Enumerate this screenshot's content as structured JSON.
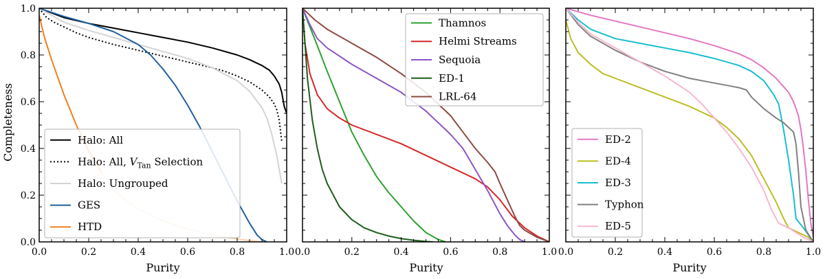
{
  "chart_data": [
    {
      "type": "line",
      "xlabel": "Purity",
      "ylabel": "Completeness",
      "xlim": [
        0,
        1
      ],
      "ylim": [
        0,
        1
      ],
      "xticks": [
        "0.0",
        "0.2",
        "0.4",
        "0.6",
        "0.8",
        "1.0"
      ],
      "yticks": [
        "0.0",
        "0.2",
        "0.4",
        "0.6",
        "0.8",
        "1.0"
      ],
      "legend_position": "lower-left",
      "series": [
        {
          "name": "Halo: All",
          "label_prefix": "Halo: All",
          "color": "#000000",
          "style": "solid",
          "x": [
            0,
            0.1,
            0.2,
            0.3,
            0.4,
            0.5,
            0.6,
            0.7,
            0.8,
            0.85,
            0.9,
            0.93,
            0.95,
            0.97,
            0.98,
            0.99,
            1.0
          ],
          "y": [
            1.0,
            0.96,
            0.935,
            0.915,
            0.895,
            0.875,
            0.855,
            0.83,
            0.8,
            0.78,
            0.755,
            0.735,
            0.71,
            0.675,
            0.64,
            0.58,
            0.55
          ]
        },
        {
          "name": "Halo: All, V_Tan Selection",
          "label_prefix": "Halo: All, ",
          "label_italic": "V",
          "label_sub": "Tan",
          "label_suffix": " Selection",
          "color": "#000000",
          "style": "dotted",
          "x": [
            0,
            0.03,
            0.06,
            0.1,
            0.15,
            0.2,
            0.3,
            0.4,
            0.5,
            0.6,
            0.7,
            0.75,
            0.8,
            0.85,
            0.9,
            0.93,
            0.95,
            0.96,
            0.97,
            0.98
          ],
          "y": [
            1.0,
            0.96,
            0.94,
            0.92,
            0.895,
            0.875,
            0.845,
            0.82,
            0.795,
            0.77,
            0.745,
            0.73,
            0.71,
            0.685,
            0.65,
            0.62,
            0.59,
            0.565,
            0.52,
            0.43
          ]
        },
        {
          "name": "Halo: Ungrouped",
          "label_prefix": "Halo: Ungrouped",
          "color": "#d4d4d4",
          "style": "solid",
          "x": [
            0,
            0.1,
            0.2,
            0.3,
            0.4,
            0.5,
            0.6,
            0.7,
            0.8,
            0.85,
            0.9,
            0.92,
            0.94,
            0.96,
            0.98
          ],
          "y": [
            1.0,
            0.94,
            0.905,
            0.875,
            0.845,
            0.815,
            0.785,
            0.745,
            0.69,
            0.645,
            0.575,
            0.53,
            0.46,
            0.37,
            0.25
          ]
        },
        {
          "name": "GES",
          "label_prefix": "GES",
          "color": "#1f5f9e",
          "style": "solid",
          "x": [
            0,
            0.1,
            0.2,
            0.3,
            0.4,
            0.45,
            0.5,
            0.55,
            0.6,
            0.65,
            0.7,
            0.75,
            0.8,
            0.85,
            0.88,
            0.9,
            0.92
          ],
          "y": [
            1.0,
            0.965,
            0.935,
            0.9,
            0.845,
            0.8,
            0.74,
            0.67,
            0.585,
            0.49,
            0.385,
            0.28,
            0.175,
            0.08,
            0.03,
            0.01,
            0.0
          ]
        },
        {
          "name": "HTD",
          "label_prefix": "HTD",
          "color": "#f07f1a",
          "style": "solid",
          "fade_after": 0.28,
          "x": [
            0,
            0.02,
            0.05,
            0.1,
            0.15,
            0.2,
            0.25,
            0.3,
            0.4,
            0.5,
            0.6,
            0.7,
            0.8,
            0.88,
            0.9
          ],
          "y": [
            0.97,
            0.88,
            0.78,
            0.63,
            0.5,
            0.39,
            0.3,
            0.22,
            0.14,
            0.09,
            0.055,
            0.03,
            0.012,
            0.002,
            0.0
          ]
        }
      ]
    },
    {
      "type": "line",
      "xlabel": "Purity",
      "ylabel": "",
      "xlim": [
        0,
        1
      ],
      "ylim": [
        0,
        1
      ],
      "xticks": [
        "0.0",
        "0.2",
        "0.4",
        "0.6",
        "0.8",
        "1.0"
      ],
      "yticks": [],
      "legend_position": "top-right",
      "series": [
        {
          "name": "Thamnos",
          "label_prefix": "Thamnos",
          "color": "#2ca02c",
          "style": "solid",
          "x": [
            0,
            0.03,
            0.06,
            0.1,
            0.15,
            0.2,
            0.25,
            0.3,
            0.35,
            0.4,
            0.45,
            0.5,
            0.55,
            0.58
          ],
          "y": [
            1.0,
            0.92,
            0.84,
            0.73,
            0.6,
            0.47,
            0.37,
            0.28,
            0.21,
            0.15,
            0.09,
            0.04,
            0.01,
            0.0
          ]
        },
        {
          "name": "Helmi Streams",
          "label_prefix": "Helmi Streams",
          "color": "#d62728",
          "style": "solid",
          "x": [
            0,
            0.01,
            0.03,
            0.06,
            0.1,
            0.15,
            0.2,
            0.3,
            0.4,
            0.5,
            0.6,
            0.7,
            0.75,
            0.8,
            0.85,
            0.9,
            0.95,
            1.0
          ],
          "y": [
            1.0,
            0.85,
            0.72,
            0.63,
            0.57,
            0.53,
            0.5,
            0.46,
            0.42,
            0.37,
            0.32,
            0.27,
            0.235,
            0.18,
            0.11,
            0.06,
            0.025,
            0.0
          ]
        },
        {
          "name": "Sequoia",
          "label_prefix": "Sequoia",
          "color": "#8a55c5",
          "style": "solid",
          "x": [
            0,
            0.03,
            0.06,
            0.1,
            0.2,
            0.3,
            0.4,
            0.5,
            0.6,
            0.65,
            0.7,
            0.75,
            0.8,
            0.83,
            0.86,
            0.88,
            0.9
          ],
          "y": [
            1.0,
            0.93,
            0.87,
            0.83,
            0.76,
            0.7,
            0.64,
            0.56,
            0.46,
            0.4,
            0.31,
            0.22,
            0.12,
            0.07,
            0.03,
            0.01,
            0.0
          ]
        },
        {
          "name": "ED-1",
          "label_prefix": "ED-1",
          "color": "#1b5e1b",
          "style": "solid",
          "x": [
            0,
            0.01,
            0.02,
            0.04,
            0.06,
            0.08,
            0.1,
            0.15,
            0.2,
            0.25,
            0.3,
            0.35,
            0.4,
            0.45,
            0.5,
            0.53
          ],
          "y": [
            1.0,
            0.85,
            0.7,
            0.52,
            0.4,
            0.31,
            0.25,
            0.15,
            0.095,
            0.06,
            0.04,
            0.025,
            0.014,
            0.007,
            0.002,
            0.0
          ]
        },
        {
          "name": "LRL-64",
          "label_prefix": "LRL-64",
          "color": "#8c4a40",
          "style": "solid",
          "x": [
            0,
            0.05,
            0.1,
            0.2,
            0.3,
            0.4,
            0.5,
            0.6,
            0.65,
            0.7,
            0.75,
            0.78,
            0.8,
            0.83,
            0.86,
            0.88,
            0.9,
            0.95,
            1.0
          ],
          "y": [
            1.0,
            0.95,
            0.91,
            0.85,
            0.79,
            0.72,
            0.64,
            0.54,
            0.47,
            0.4,
            0.34,
            0.3,
            0.25,
            0.18,
            0.11,
            0.07,
            0.05,
            0.02,
            0.0
          ]
        }
      ]
    },
    {
      "type": "line",
      "xlabel": "Purity",
      "ylabel": "",
      "xlim": [
        0,
        1
      ],
      "ylim": [
        0,
        1
      ],
      "xticks": [
        "0.0",
        "0.2",
        "0.4",
        "0.6",
        "0.8",
        "1.0"
      ],
      "yticks": [],
      "legend_position": "lower-left",
      "series": [
        {
          "name": "ED-2",
          "label_prefix": "ED-2",
          "color": "#e377c2",
          "style": "solid",
          "x": [
            0,
            0.1,
            0.2,
            0.3,
            0.4,
            0.5,
            0.6,
            0.7,
            0.75,
            0.8,
            0.85,
            0.9,
            0.92,
            0.94,
            0.95,
            0.96,
            0.97,
            0.98,
            0.99,
            1.0
          ],
          "y": [
            1.0,
            0.97,
            0.945,
            0.92,
            0.895,
            0.87,
            0.84,
            0.805,
            0.78,
            0.745,
            0.7,
            0.64,
            0.6,
            0.54,
            0.48,
            0.4,
            0.3,
            0.18,
            0.08,
            0.02
          ]
        },
        {
          "name": "ED-4",
          "label_prefix": "ED-4",
          "color": "#bcbd22",
          "style": "solid",
          "x": [
            0,
            0.02,
            0.05,
            0.1,
            0.15,
            0.2,
            0.3,
            0.4,
            0.5,
            0.6,
            0.65,
            0.7,
            0.75,
            0.8,
            0.85,
            0.88,
            0.9,
            0.92,
            0.95,
            0.98,
            1.0
          ],
          "y": [
            0.95,
            0.87,
            0.81,
            0.76,
            0.72,
            0.7,
            0.66,
            0.62,
            0.58,
            0.53,
            0.49,
            0.44,
            0.37,
            0.27,
            0.17,
            0.1,
            0.06,
            0.05,
            0.035,
            0.02,
            0.0
          ]
        },
        {
          "name": "ED-3",
          "label_prefix": "ED-3",
          "color": "#17becf",
          "style": "solid",
          "x": [
            0,
            0.05,
            0.1,
            0.2,
            0.3,
            0.4,
            0.5,
            0.6,
            0.7,
            0.75,
            0.8,
            0.82,
            0.84,
            0.86,
            0.88,
            0.9,
            0.92,
            0.93,
            0.96,
            1.0
          ],
          "y": [
            1.0,
            0.95,
            0.91,
            0.87,
            0.85,
            0.83,
            0.81,
            0.785,
            0.755,
            0.73,
            0.69,
            0.66,
            0.63,
            0.59,
            0.48,
            0.35,
            0.2,
            0.1,
            0.06,
            0.0
          ]
        },
        {
          "name": "Typhon",
          "label_prefix": "Typhon",
          "color": "#808080",
          "style": "solid",
          "x": [
            0,
            0.05,
            0.1,
            0.2,
            0.3,
            0.4,
            0.5,
            0.6,
            0.65,
            0.7,
            0.73,
            0.75,
            0.8,
            0.85,
            0.88,
            0.9,
            0.92,
            0.93,
            0.94,
            0.95,
            0.97,
            1.0
          ],
          "y": [
            1.0,
            0.93,
            0.88,
            0.82,
            0.77,
            0.73,
            0.7,
            0.68,
            0.67,
            0.66,
            0.65,
            0.62,
            0.57,
            0.53,
            0.51,
            0.49,
            0.47,
            0.42,
            0.3,
            0.15,
            0.05,
            0.0
          ]
        },
        {
          "name": "ED-5",
          "label_prefix": "ED-5",
          "color": "#f7b6d2",
          "style": "solid",
          "x": [
            0,
            0.05,
            0.1,
            0.2,
            0.3,
            0.4,
            0.5,
            0.55,
            0.6,
            0.65,
            0.7,
            0.75,
            0.8,
            0.83,
            0.86,
            0.88,
            0.9,
            0.93,
            0.96,
            1.0
          ],
          "y": [
            1.0,
            0.94,
            0.89,
            0.83,
            0.77,
            0.71,
            0.64,
            0.59,
            0.53,
            0.47,
            0.4,
            0.32,
            0.22,
            0.14,
            0.08,
            0.07,
            0.06,
            0.04,
            0.02,
            0.0
          ]
        }
      ]
    }
  ]
}
